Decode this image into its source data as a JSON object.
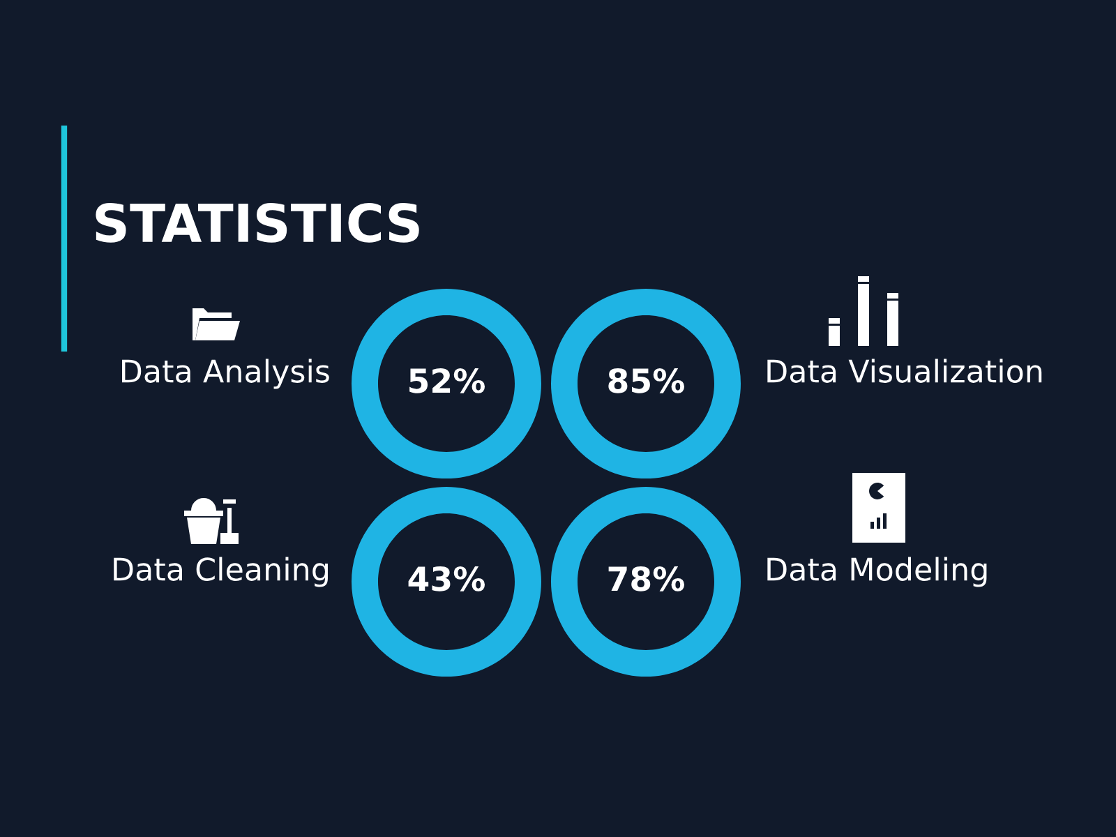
{
  "chart_data": {
    "type": "other",
    "title": "STATISTICS",
    "categories": [
      "Data Analysis",
      "Data Visualization",
      "Data Cleaning",
      "Data Modeling"
    ],
    "values": [
      52,
      85,
      43,
      78
    ],
    "value_labels": [
      "52%",
      "85%",
      "43%",
      "78%"
    ],
    "colors": [
      "#1fb4e4",
      "#1fb4e4",
      "#1fb4e4",
      "#1fb4e4"
    ]
  }
}
